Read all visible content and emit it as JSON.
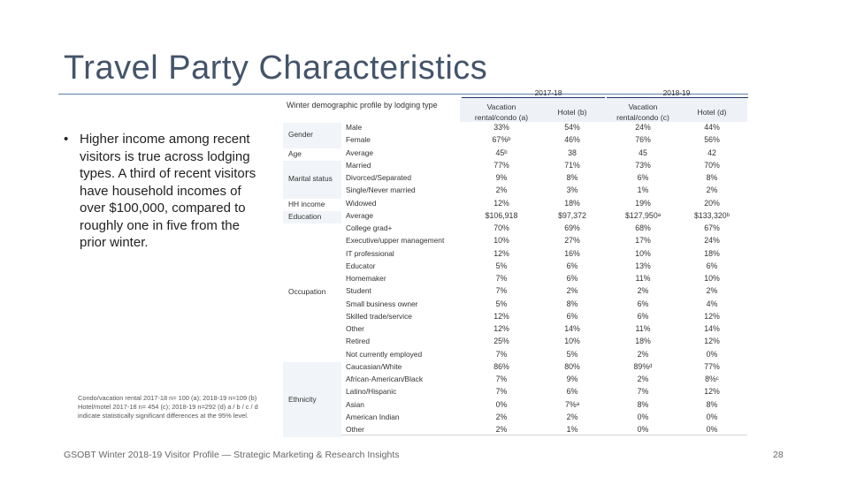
{
  "title": "Travel Party Characteristics",
  "bullet": "Higher income among recent visitors is true across lodging types. A third of recent visitors have household incomes of over $100,000, compared to roughly one in five from the prior winter.",
  "bullet_mark": "•",
  "footnote": "Condo/vacation rental 2017-18 n= 100 (a); 2018-19 n=109 (b) Hotel/motel 2017-18 n= 454 (c); 2018-19 n=292 (d) a / b / c / d indicate statistically significant differences at the 95% level.",
  "footer": "GSOBT Winter 2018-19 Visitor Profile — Strategic Marketing & Research Insights",
  "page_number": "28",
  "table": {
    "title": "Winter demographic profile by lodging type",
    "years": [
      "2017-18",
      "2018-19"
    ],
    "columns": [
      "Vacation rental/condo (a)",
      "Hotel (b)",
      "Vacation rental/condo (c)",
      "Hotel (d)"
    ],
    "categories": [
      {
        "label": "Gender",
        "start": 0
      },
      {
        "label": "Age",
        "start": 2
      },
      {
        "label": "Marital status",
        "start": 3
      },
      {
        "label": "HH income",
        "start": 6
      },
      {
        "label": "Education",
        "start": 7
      },
      {
        "label": "Occupation",
        "start": 8
      },
      {
        "label": "Ethnicity",
        "start": 19
      }
    ],
    "rows": [
      {
        "label": "Male",
        "v": [
          "33%",
          "54%",
          "24%",
          "44%"
        ]
      },
      {
        "label": "Female",
        "v": [
          "67%ᵇ",
          "46%",
          "76%",
          "56%"
        ]
      },
      {
        "label": "Average",
        "v": [
          "45ᵇ",
          "38",
          "45",
          "42"
        ]
      },
      {
        "label": "Married",
        "v": [
          "77%",
          "71%",
          "73%",
          "70%"
        ]
      },
      {
        "label": "Divorced/Separated",
        "v": [
          "9%",
          "8%",
          "6%",
          "8%"
        ]
      },
      {
        "label": "Single/Never married",
        "v": [
          "2%",
          "3%",
          "1%",
          "2%"
        ]
      },
      {
        "label": "Widowed",
        "v": [
          "12%",
          "18%",
          "19%",
          "20%"
        ]
      },
      {
        "label": "Average",
        "v": [
          "$106,918",
          "$97,372",
          "$127,950ᵃ",
          "$133,320ᵇ"
        ]
      },
      {
        "label": "College grad+",
        "v": [
          "70%",
          "69%",
          "68%",
          "67%"
        ]
      },
      {
        "label": "Executive/upper management",
        "v": [
          "10%",
          "27%",
          "17%",
          "24%"
        ]
      },
      {
        "label": "IT professional",
        "v": [
          "12%",
          "16%",
          "10%",
          "18%"
        ]
      },
      {
        "label": "Educator",
        "v": [
          "5%",
          "6%",
          "13%",
          "6%"
        ]
      },
      {
        "label": "Homemaker",
        "v": [
          "7%",
          "6%",
          "11%",
          "10%"
        ]
      },
      {
        "label": "Student",
        "v": [
          "7%",
          "2%",
          "2%",
          "2%"
        ]
      },
      {
        "label": "Small business owner",
        "v": [
          "5%",
          "8%",
          "6%",
          "4%"
        ]
      },
      {
        "label": "Skilled trade/service",
        "v": [
          "12%",
          "6%",
          "6%",
          "12%"
        ]
      },
      {
        "label": "Other",
        "v": [
          "12%",
          "14%",
          "11%",
          "14%"
        ]
      },
      {
        "label": "Retired",
        "v": [
          "25%",
          "10%",
          "18%",
          "12%"
        ]
      },
      {
        "label": "Not currently employed",
        "v": [
          "7%",
          "5%",
          "2%",
          "0%"
        ]
      },
      {
        "label": "Caucasian/White",
        "v": [
          "86%",
          "80%",
          "89%ᵈ",
          "77%"
        ]
      },
      {
        "label": "African-American/Black",
        "v": [
          "7%",
          "9%",
          "2%",
          "8%ᶜ"
        ]
      },
      {
        "label": "Latino/Hispanic",
        "v": [
          "7%",
          "6%",
          "7%",
          "12%"
        ]
      },
      {
        "label": "Asian",
        "v": [
          "0%",
          "7%ᵃ",
          "8%",
          "8%"
        ]
      },
      {
        "label": "American Indian",
        "v": [
          "2%",
          "2%",
          "0%",
          "0%"
        ]
      },
      {
        "label": "Other",
        "v": [
          "2%",
          "1%",
          "0%",
          "0%"
        ]
      }
    ]
  },
  "colors": {
    "title": "#44546a",
    "rule": "#5b7fa6",
    "year_line": "#1f3864",
    "band": "#eef2f7"
  }
}
